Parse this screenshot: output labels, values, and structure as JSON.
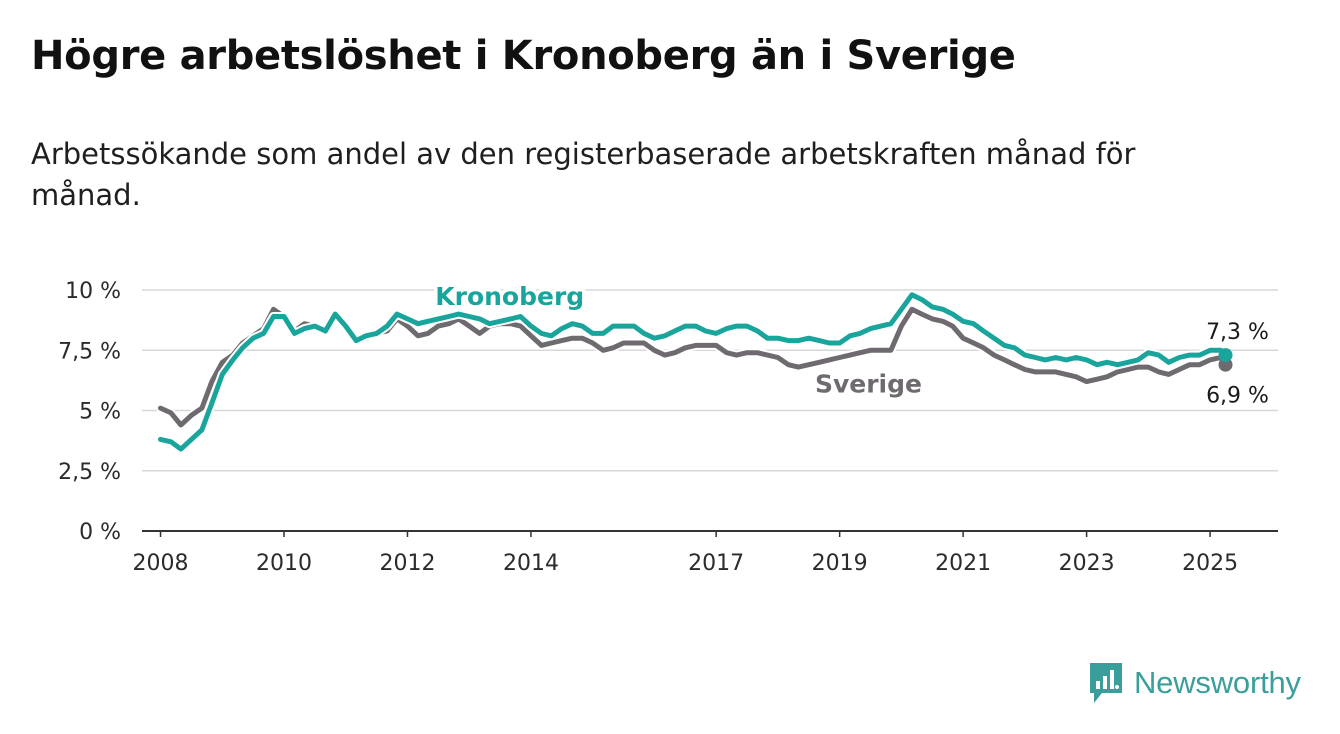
{
  "header": {
    "title": "Högre arbetslöshet i Kronoberg än i Sverige",
    "subtitle": "Arbetssökande som andel av den registerbaserade arbetskraften månad för månad."
  },
  "brand": {
    "name": "Newsworthy",
    "icon": "newsworthy-logo-icon",
    "color": "#3a9f9b"
  },
  "chart_data": {
    "type": "line",
    "title": "Högre arbetslöshet i Kronoberg än i Sverige",
    "subtitle": "Arbetssökande som andel av den registerbaserade arbetskraften månad för månad.",
    "xlabel": "",
    "ylabel": "",
    "ylim": [
      0,
      10
    ],
    "xlim": [
      2007.7,
      2026.1
    ],
    "yticks": [
      0,
      2.5,
      5,
      7.5,
      10
    ],
    "ytick_labels": [
      "0 %",
      "2,5 %",
      "5 %",
      "7,5 %",
      "10 %"
    ],
    "xticks": [
      2008,
      2010,
      2012,
      2014,
      2017,
      2019,
      2021,
      2023,
      2025
    ],
    "xtick_labels": [
      "2008",
      "2010",
      "2012",
      "2014",
      "2017",
      "2019",
      "2021",
      "2023",
      "2025"
    ],
    "grid": "horizontal",
    "legend": "inline labels",
    "series": [
      {
        "name": "Kronoberg",
        "color": "#1aa59c",
        "end_label": "7,3 %",
        "x": [
          2008.0,
          2008.17,
          2008.33,
          2008.5,
          2008.67,
          2008.83,
          2009.0,
          2009.17,
          2009.33,
          2009.5,
          2009.67,
          2009.83,
          2010.0,
          2010.17,
          2010.33,
          2010.5,
          2010.67,
          2010.83,
          2011.0,
          2011.17,
          2011.33,
          2011.5,
          2011.67,
          2011.83,
          2012.0,
          2012.17,
          2012.33,
          2012.5,
          2012.67,
          2012.83,
          2013.0,
          2013.17,
          2013.33,
          2013.5,
          2013.67,
          2013.83,
          2014.0,
          2014.17,
          2014.33,
          2014.5,
          2014.67,
          2014.83,
          2015.0,
          2015.17,
          2015.33,
          2015.5,
          2015.67,
          2015.83,
          2016.0,
          2016.17,
          2016.33,
          2016.5,
          2016.67,
          2016.83,
          2017.0,
          2017.17,
          2017.33,
          2017.5,
          2017.67,
          2017.83,
          2018.0,
          2018.17,
          2018.33,
          2018.5,
          2018.67,
          2018.83,
          2019.0,
          2019.17,
          2019.33,
          2019.5,
          2019.67,
          2019.83,
          2020.0,
          2020.17,
          2020.33,
          2020.5,
          2020.67,
          2020.83,
          2021.0,
          2021.17,
          2021.33,
          2021.5,
          2021.67,
          2021.83,
          2022.0,
          2022.17,
          2022.33,
          2022.5,
          2022.67,
          2022.83,
          2023.0,
          2023.17,
          2023.33,
          2023.5,
          2023.67,
          2023.83,
          2024.0,
          2024.17,
          2024.33,
          2024.5,
          2024.67,
          2024.83,
          2025.0,
          2025.17,
          2025.25
        ],
        "values": [
          3.8,
          3.7,
          3.4,
          3.8,
          4.2,
          5.3,
          6.5,
          7.1,
          7.6,
          8.0,
          8.2,
          8.9,
          8.9,
          8.2,
          8.4,
          8.5,
          8.3,
          9.0,
          8.5,
          7.9,
          8.1,
          8.2,
          8.5,
          9.0,
          8.8,
          8.6,
          8.7,
          8.8,
          8.9,
          9.0,
          8.9,
          8.8,
          8.6,
          8.7,
          8.8,
          8.9,
          8.5,
          8.2,
          8.1,
          8.4,
          8.6,
          8.5,
          8.2,
          8.2,
          8.5,
          8.5,
          8.5,
          8.2,
          8.0,
          8.1,
          8.3,
          8.5,
          8.5,
          8.3,
          8.2,
          8.4,
          8.5,
          8.5,
          8.3,
          8.0,
          8.0,
          7.9,
          7.9,
          8.0,
          7.9,
          7.8,
          7.8,
          8.1,
          8.2,
          8.4,
          8.5,
          8.6,
          9.2,
          9.8,
          9.6,
          9.3,
          9.2,
          9.0,
          8.7,
          8.6,
          8.3,
          8.0,
          7.7,
          7.6,
          7.3,
          7.2,
          7.1,
          7.2,
          7.1,
          7.2,
          7.1,
          6.9,
          7.0,
          6.9,
          7.0,
          7.1,
          7.4,
          7.3,
          7.0,
          7.2,
          7.3,
          7.3,
          7.5,
          7.5,
          7.3
        ]
      },
      {
        "name": "Sverige",
        "color": "#6e6a70",
        "end_label": "6,9 %",
        "x": [
          2008.0,
          2008.17,
          2008.33,
          2008.5,
          2008.67,
          2008.83,
          2009.0,
          2009.17,
          2009.33,
          2009.5,
          2009.67,
          2009.83,
          2010.0,
          2010.17,
          2010.33,
          2010.5,
          2010.67,
          2010.83,
          2011.0,
          2011.17,
          2011.33,
          2011.5,
          2011.67,
          2011.83,
          2012.0,
          2012.17,
          2012.33,
          2012.5,
          2012.67,
          2012.83,
          2013.0,
          2013.17,
          2013.33,
          2013.5,
          2013.67,
          2013.83,
          2014.0,
          2014.17,
          2014.33,
          2014.5,
          2014.67,
          2014.83,
          2015.0,
          2015.17,
          2015.33,
          2015.5,
          2015.67,
          2015.83,
          2016.0,
          2016.17,
          2016.33,
          2016.5,
          2016.67,
          2016.83,
          2017.0,
          2017.17,
          2017.33,
          2017.5,
          2017.67,
          2017.83,
          2018.0,
          2018.17,
          2018.33,
          2018.5,
          2018.67,
          2018.83,
          2019.0,
          2019.17,
          2019.33,
          2019.5,
          2019.67,
          2019.83,
          2020.0,
          2020.17,
          2020.33,
          2020.5,
          2020.67,
          2020.83,
          2021.0,
          2021.17,
          2021.33,
          2021.5,
          2021.67,
          2021.83,
          2022.0,
          2022.17,
          2022.33,
          2022.5,
          2022.67,
          2022.83,
          2023.0,
          2023.17,
          2023.33,
          2023.5,
          2023.67,
          2023.83,
          2024.0,
          2024.17,
          2024.33,
          2024.5,
          2024.67,
          2024.83,
          2025.0,
          2025.17,
          2025.25
        ],
        "values": [
          5.1,
          4.9,
          4.4,
          4.8,
          5.1,
          6.2,
          7.0,
          7.3,
          7.8,
          8.1,
          8.4,
          9.2,
          8.9,
          8.3,
          8.6,
          8.5,
          8.4,
          8.9,
          8.4,
          7.9,
          8.0,
          8.2,
          8.3,
          8.8,
          8.5,
          8.1,
          8.2,
          8.5,
          8.6,
          8.8,
          8.5,
          8.2,
          8.5,
          8.6,
          8.6,
          8.5,
          8.1,
          7.7,
          7.8,
          7.9,
          8.0,
          8.0,
          7.8,
          7.5,
          7.6,
          7.8,
          7.8,
          7.8,
          7.5,
          7.3,
          7.4,
          7.6,
          7.7,
          7.7,
          7.7,
          7.4,
          7.3,
          7.4,
          7.4,
          7.3,
          7.2,
          6.9,
          6.8,
          6.9,
          7.0,
          7.1,
          7.2,
          7.3,
          7.4,
          7.5,
          7.5,
          7.5,
          8.5,
          9.2,
          9.0,
          8.8,
          8.7,
          8.5,
          8.0,
          7.8,
          7.6,
          7.3,
          7.1,
          6.9,
          6.7,
          6.6,
          6.6,
          6.6,
          6.5,
          6.4,
          6.2,
          6.3,
          6.4,
          6.6,
          6.7,
          6.8,
          6.8,
          6.6,
          6.5,
          6.7,
          6.9,
          6.9,
          7.1,
          7.2,
          6.9
        ]
      }
    ]
  }
}
